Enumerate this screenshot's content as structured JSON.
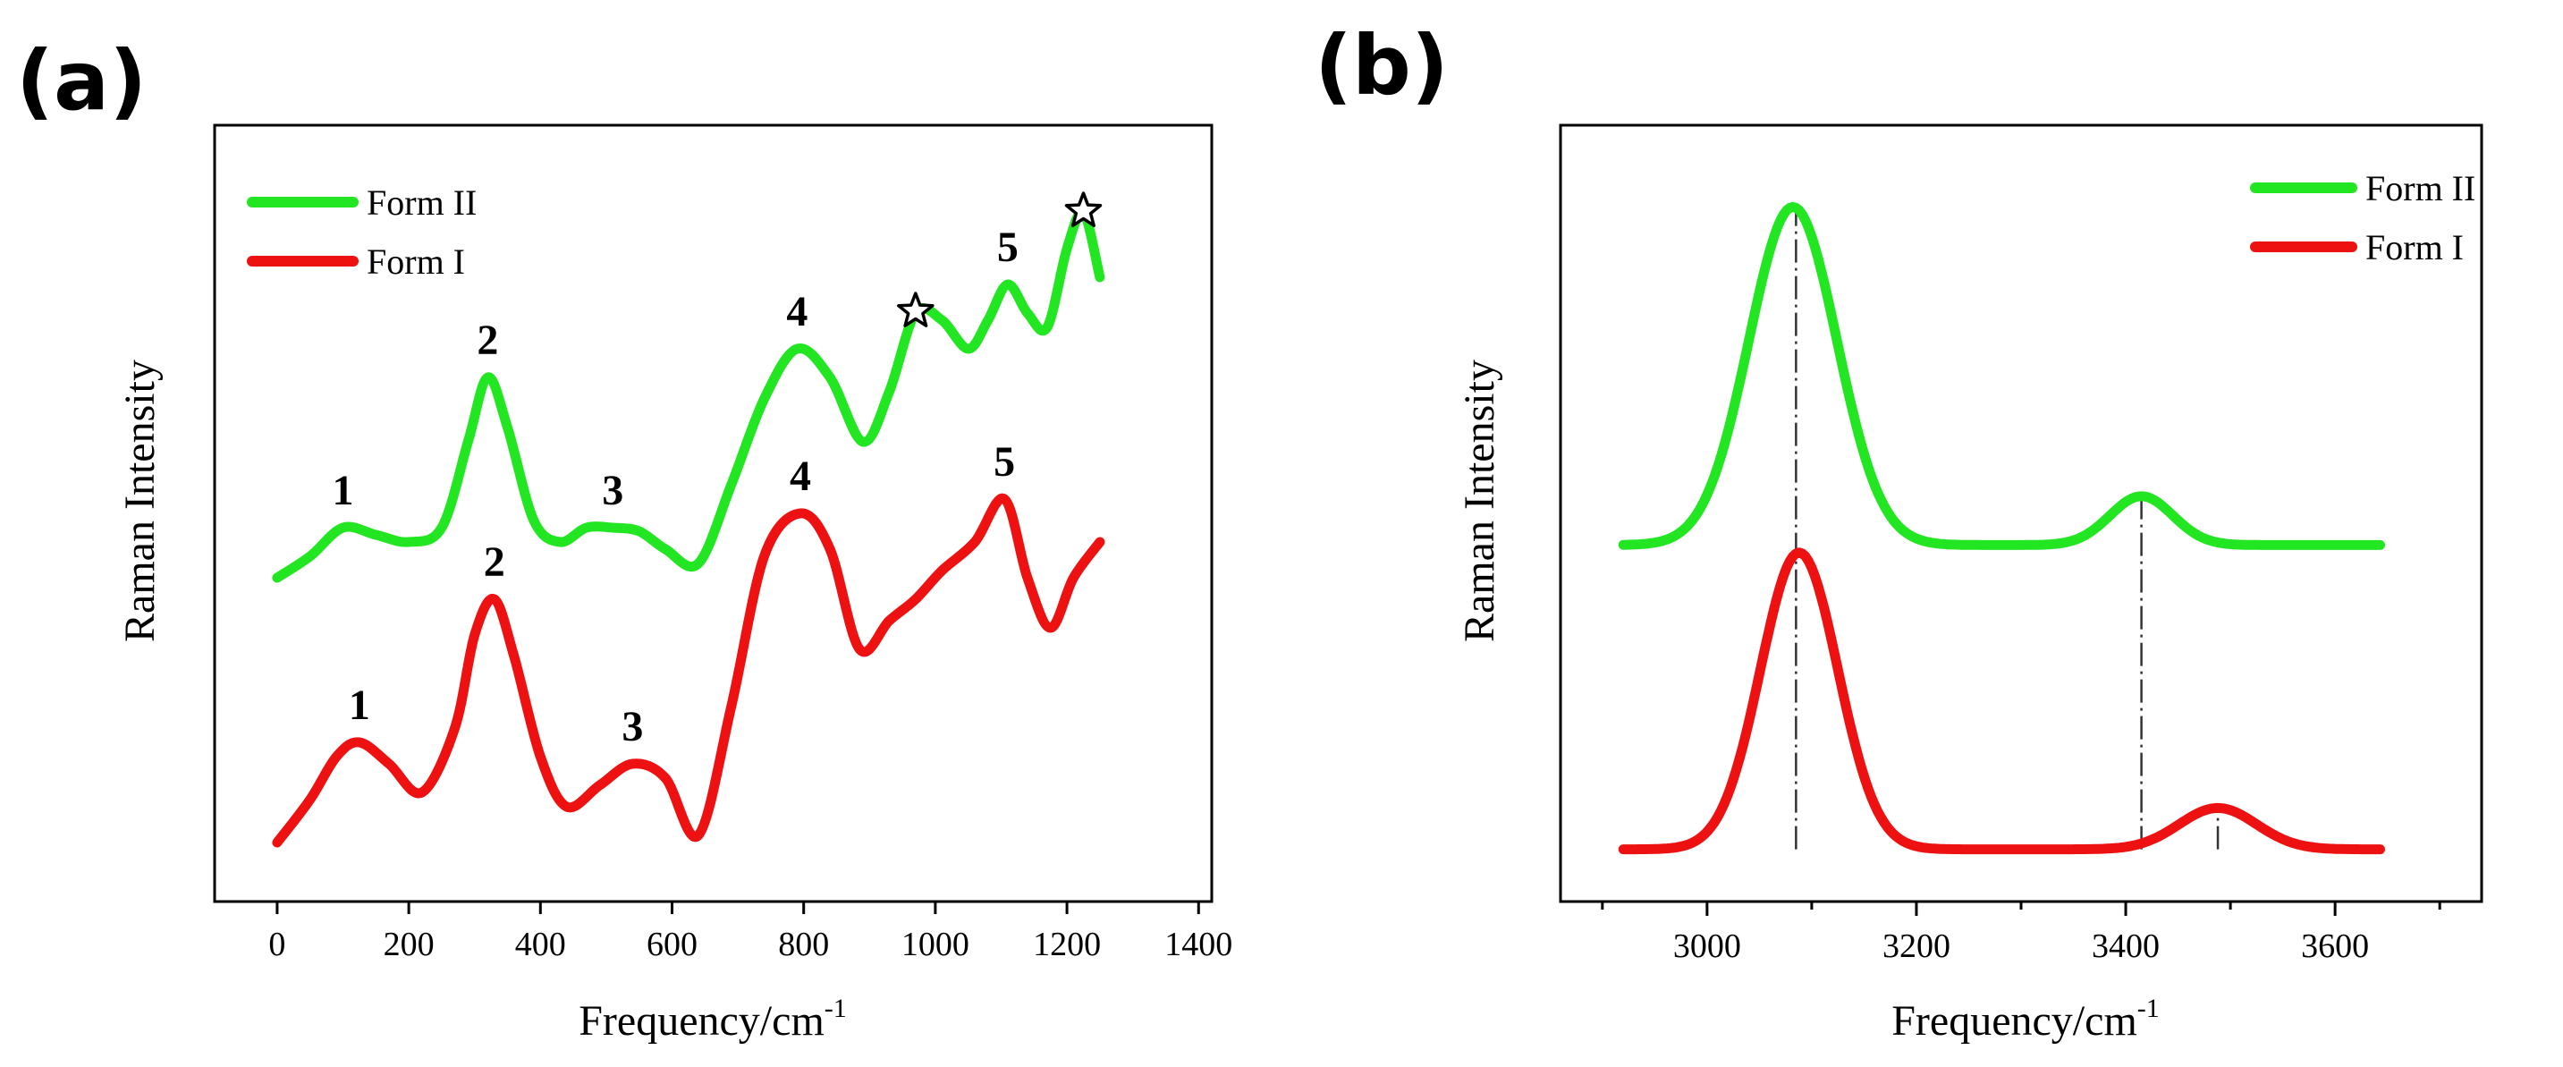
{
  "chart_data": [
    {
      "type": "line",
      "panel_label": "(a)",
      "title": "",
      "xlabel": "Frequency/cm",
      "xlabel_sup": "-1",
      "ylabel": "Raman Intensity",
      "xlim": [
        -95,
        1420
      ],
      "ylim": [
        0,
        10
      ],
      "xticks": [
        0,
        200,
        400,
        600,
        800,
        1000,
        1200,
        1400
      ],
      "xtick_labels": [
        "0",
        "200",
        "400",
        "600",
        "800",
        "1000",
        "1200",
        "1400"
      ],
      "yticks_shown": false,
      "legend_position": "top-left",
      "series": [
        {
          "name": "Form II",
          "color": "#22e622",
          "x": [
            0,
            50,
            100,
            150,
            200,
            250,
            290,
            320,
            350,
            390,
            430,
            470,
            510,
            550,
            590,
            640,
            690,
            740,
            790,
            840,
            890,
            930,
            970,
            1010,
            1050,
            1080,
            1110,
            1140,
            1170,
            1200,
            1225,
            1250
          ],
          "y": [
            4.3,
            4.6,
            5.0,
            4.9,
            4.8,
            5.0,
            6.2,
            7.1,
            6.4,
            5.1,
            4.8,
            5.0,
            5.0,
            4.95,
            4.7,
            4.5,
            5.6,
            6.8,
            7.5,
            7.1,
            6.2,
            6.9,
            8.0,
            7.9,
            7.5,
            7.9,
            8.4,
            8.0,
            7.8,
            8.9,
            9.4,
            8.5
          ]
        },
        {
          "name": "Form I",
          "color": "#ee1111",
          "x": [
            0,
            50,
            90,
            125,
            170,
            220,
            270,
            300,
            330,
            360,
            400,
            440,
            490,
            540,
            590,
            640,
            690,
            740,
            795,
            840,
            885,
            930,
            970,
            1010,
            1060,
            1105,
            1140,
            1175,
            1210,
            1250
          ],
          "y": [
            0.6,
            1.2,
            1.8,
            2.0,
            1.7,
            1.3,
            2.2,
            3.5,
            4.0,
            3.2,
            1.8,
            1.1,
            1.4,
            1.7,
            1.5,
            0.7,
            2.5,
            4.6,
            5.2,
            4.7,
            3.3,
            3.7,
            4.0,
            4.4,
            4.8,
            5.4,
            4.3,
            3.6,
            4.3,
            4.8
          ]
        }
      ],
      "annotations": [
        {
          "text": "1",
          "series": "Form II",
          "x": 100,
          "y": 5.0
        },
        {
          "text": "2",
          "series": "Form II",
          "x": 320,
          "y": 7.1
        },
        {
          "text": "3",
          "series": "Form II",
          "x": 510,
          "y": 5.0
        },
        {
          "text": "4",
          "series": "Form II",
          "x": 790,
          "y": 7.5
        },
        {
          "text": "5",
          "series": "Form II",
          "x": 1110,
          "y": 8.4
        },
        {
          "text": "1",
          "series": "Form I",
          "x": 125,
          "y": 2.0
        },
        {
          "text": "2",
          "series": "Form I",
          "x": 330,
          "y": 4.0
        },
        {
          "text": "3",
          "series": "Form I",
          "x": 540,
          "y": 1.7
        },
        {
          "text": "4",
          "series": "Form I",
          "x": 795,
          "y": 5.2
        },
        {
          "text": "5",
          "series": "Form I",
          "x": 1105,
          "y": 5.4
        }
      ],
      "star_markers": [
        {
          "series": "Form II",
          "x": 970,
          "y": 8.0
        },
        {
          "series": "Form II",
          "x": 1225,
          "y": 9.4
        }
      ]
    },
    {
      "type": "line",
      "panel_label": "(b)",
      "title": "",
      "xlabel": "Frequency/cm",
      "xlabel_sup": "-1",
      "ylabel": "Raman Intensity",
      "xlim": [
        2860,
        3740
      ],
      "ylim": [
        0,
        10
      ],
      "xticks": [
        3000,
        3200,
        3400,
        3600
      ],
      "xtick_labels": [
        "3000",
        "3200",
        "3400",
        "3600"
      ],
      "minor_xticks": [
        2900,
        3100,
        3300,
        3500,
        3700
      ],
      "yticks_shown": false,
      "legend_position": "top-right",
      "series": [
        {
          "name": "Form II",
          "color": "#22e622",
          "baseline": 4.65,
          "peaks": [
            {
              "center": 3082,
              "amplitude": 4.5,
              "sigma": 42
            },
            {
              "center": 3415,
              "amplitude": 0.65,
              "sigma": 30
            }
          ],
          "x_range": [
            2920,
            3645
          ]
        },
        {
          "name": "Form I",
          "color": "#ee1111",
          "baseline": 0.6,
          "peaks": [
            {
              "center": 3088,
              "amplitude": 3.95,
              "sigma": 37
            },
            {
              "center": 3488,
              "amplitude": 0.55,
              "sigma": 37
            }
          ],
          "x_range": [
            2920,
            3645
          ]
        }
      ],
      "reference_lines": [
        {
          "x": 3085,
          "from_y": 0.6,
          "to_y": 9.15
        },
        {
          "x": 3415,
          "from_y": 0.6,
          "to_y": 5.3
        },
        {
          "x": 3488,
          "from_y": 0.6,
          "to_y": 1.15
        }
      ]
    }
  ]
}
